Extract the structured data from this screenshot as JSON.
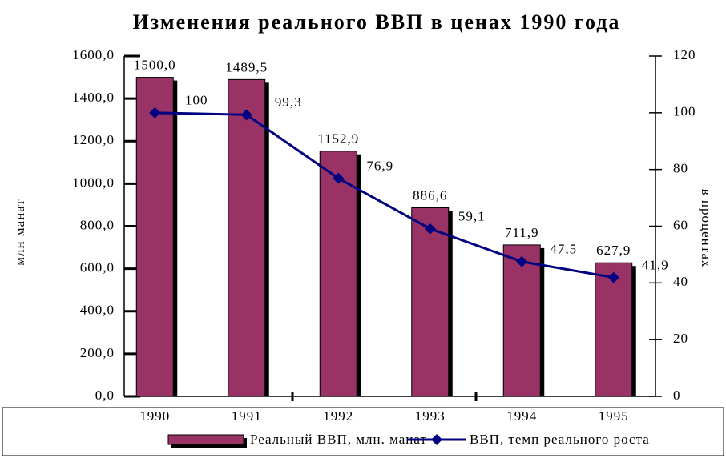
{
  "chart_data": {
    "type": "bar",
    "title": "Изменения реального ВВП в ценах 1990 года",
    "y_label": "млн манат",
    "y2_label": "в процентах",
    "categories": [
      "1990",
      "1991",
      "1992",
      "1993",
      "1994",
      "1995"
    ],
    "series": [
      {
        "name": "Реальный ВВП, млн. манат",
        "type": "bar",
        "color": "#993366",
        "values": [
          1500.0,
          1489.5,
          1152.9,
          886.6,
          711.9,
          627.9
        ],
        "value_labels": [
          "1500,0",
          "1489,5",
          "1152,9",
          "886,6",
          "711,9",
          "627,9"
        ]
      },
      {
        "name": "ВВП, темп реального роста",
        "type": "line",
        "axis": "y2",
        "color": "#000080",
        "values": [
          100,
          99.3,
          76.9,
          59.1,
          47.5,
          41.9
        ],
        "value_labels": [
          "100",
          "99,3",
          "76,9",
          "59,1",
          "47,5",
          "41,9"
        ]
      }
    ],
    "ylim": [
      0,
      1600
    ],
    "yticks": [
      {
        "value": 0,
        "label": "0,0"
      },
      {
        "value": 200,
        "label": "200,0"
      },
      {
        "value": 400,
        "label": "400,0"
      },
      {
        "value": 600,
        "label": "600,0"
      },
      {
        "value": 800,
        "label": "800,0"
      },
      {
        "value": 1000,
        "label": "1000,0"
      },
      {
        "value": 1200,
        "label": "1200,0"
      },
      {
        "value": 1400,
        "label": "1400,0"
      },
      {
        "value": 1600,
        "label": "1600,0"
      }
    ],
    "y2lim": [
      0,
      120
    ],
    "y2ticks": [
      0,
      20,
      40,
      60,
      80,
      100,
      120
    ],
    "legend": "bottom"
  }
}
